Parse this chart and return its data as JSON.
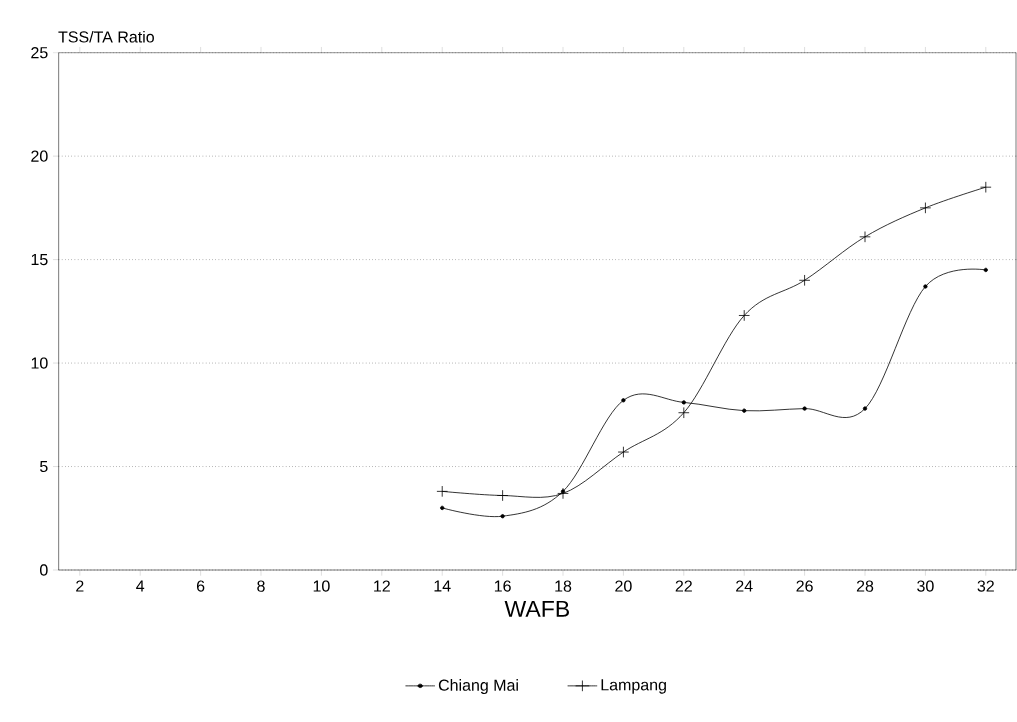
{
  "chart_data": {
    "type": "line",
    "ylabel": "TSS/TA Ratio",
    "xlabel": "WAFB",
    "xlim": [
      1.3,
      33
    ],
    "xticks": [
      2,
      4,
      6,
      8,
      10,
      12,
      14,
      16,
      18,
      20,
      22,
      24,
      26,
      28,
      30,
      32
    ],
    "ylim": [
      0,
      25
    ],
    "yticks": [
      0,
      5,
      10,
      15,
      20,
      25
    ],
    "grid": "y",
    "legend": "bottom",
    "series": [
      {
        "name": "Chiang Mai",
        "color": "#000000",
        "marker": "circle",
        "x": [
          14,
          16,
          18,
          20,
          22,
          24,
          26,
          28,
          30,
          32
        ],
        "values": [
          3.0,
          2.6,
          3.8,
          8.2,
          8.1,
          7.7,
          7.8,
          7.8,
          13.7,
          14.5
        ]
      },
      {
        "name": "Lampang",
        "color": "#000000",
        "marker": "cross",
        "x": [
          14,
          16,
          18,
          20,
          22,
          24,
          26,
          28,
          30,
          32
        ],
        "values": [
          3.8,
          3.6,
          3.7,
          5.7,
          7.6,
          12.3,
          14.0,
          16.1,
          17.5,
          18.5
        ]
      }
    ]
  }
}
